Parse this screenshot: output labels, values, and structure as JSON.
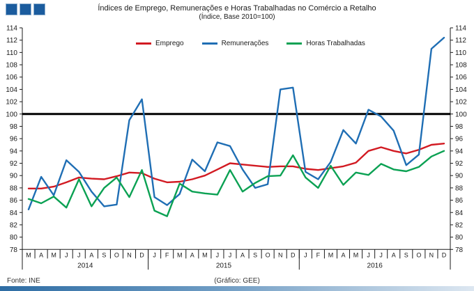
{
  "header": {
    "title": "Índices de Emprego, Remunerações e Horas Trabalhadas no Comércio a Retalho",
    "subtitle": "(Índice, Base 2010=100)"
  },
  "logo": {
    "squares": 3,
    "color": "#1b5c9e"
  },
  "footer": {
    "source": "Fonte: INE",
    "credit": "(Gráfico: GEE)"
  },
  "chart_data": {
    "type": "line",
    "title": "Índices de Emprego, Remunerações e Horas Trabalhadas no Comércio a Retalho",
    "subtitle": "(Índice, Base 2010=100)",
    "ylim": [
      78,
      114
    ],
    "ytick_step": 2,
    "grid": false,
    "legend_position": "top-center",
    "reference_line": 100,
    "reference_line_color": "#000000",
    "x_labels": [
      "M",
      "A",
      "M",
      "J",
      "J",
      "A",
      "S",
      "O",
      "N",
      "D",
      "J",
      "F",
      "M",
      "A",
      "M",
      "J",
      "J",
      "A",
      "S",
      "O",
      "N",
      "D",
      "J",
      "F",
      "M",
      "A",
      "M",
      "J",
      "J",
      "A",
      "S",
      "O",
      "N",
      "D"
    ],
    "year_groups": [
      {
        "label": "2014",
        "count": 10
      },
      {
        "label": "2015",
        "count": 12
      },
      {
        "label": "2016",
        "count": 12
      }
    ],
    "series": [
      {
        "name": "Emprego",
        "color": "#d21a22",
        "values": [
          87.9,
          87.9,
          88.2,
          88.9,
          89.7,
          89.5,
          89.4,
          89.9,
          90.5,
          90.4,
          89.5,
          88.9,
          89.0,
          89.4,
          90.0,
          91.0,
          92.0,
          91.8,
          91.6,
          91.4,
          91.5,
          91.5,
          91.1,
          90.9,
          91.2,
          91.5,
          92.1,
          94.0,
          94.6,
          94.0,
          93.6,
          94.2,
          95.0,
          95.2
        ]
      },
      {
        "name": "Remunerações",
        "color": "#1f6eb4",
        "values": [
          84.5,
          89.8,
          86.8,
          92.5,
          90.6,
          87.4,
          85.0,
          85.3,
          99.0,
          102.4,
          86.5,
          85.2,
          87.0,
          92.6,
          90.7,
          95.4,
          94.8,
          91.0,
          88.0,
          88.6,
          104.0,
          104.3,
          90.6,
          89.4,
          92.2,
          97.4,
          95.2,
          100.7,
          99.6,
          97.3,
          91.7,
          93.4,
          110.6,
          112.4
        ]
      },
      {
        "name": "Horas Trabalhadas",
        "color": "#0ba153",
        "values": [
          86.2,
          85.5,
          86.6,
          84.8,
          89.4,
          85.0,
          88.0,
          89.7,
          86.5,
          90.9,
          84.3,
          83.4,
          88.7,
          87.4,
          87.1,
          86.9,
          90.9,
          87.4,
          88.8,
          89.9,
          90.0,
          93.3,
          89.7,
          88.0,
          91.6,
          88.5,
          90.5,
          90.1,
          91.9,
          91.0,
          90.7,
          91.4,
          93.1,
          94.0
        ]
      }
    ]
  }
}
